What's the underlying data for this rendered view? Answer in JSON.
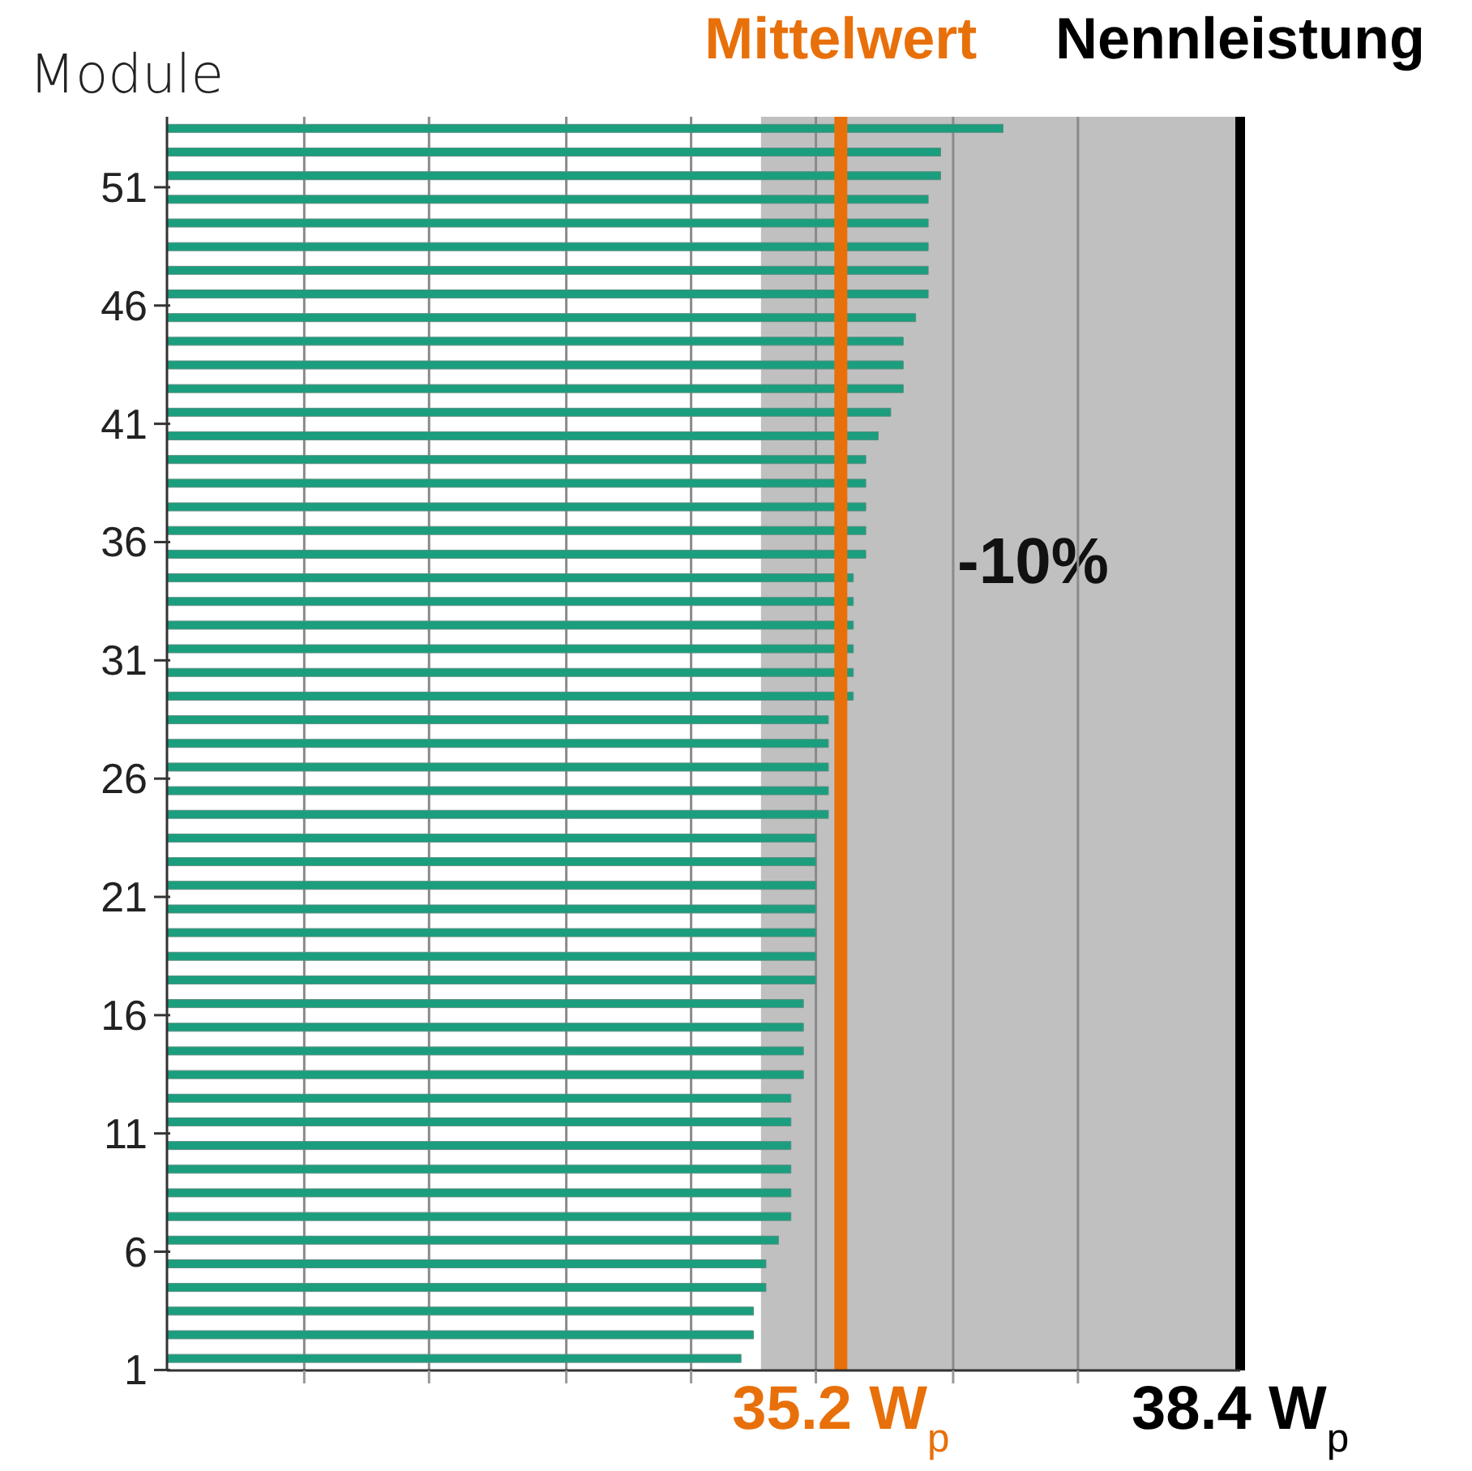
{
  "chart_data": {
    "type": "bar",
    "orientation": "horizontal",
    "ylabel": "Module",
    "categories": [
      null,
      null,
      "51",
      null,
      null,
      null,
      null,
      "46",
      null,
      null,
      null,
      null,
      "41",
      null,
      null,
      null,
      null,
      "36",
      null,
      null,
      null,
      null,
      "31",
      null,
      null,
      null,
      null,
      "26",
      null,
      null,
      null,
      null,
      "21",
      null,
      null,
      null,
      null,
      "16",
      null,
      null,
      null,
      null,
      "11",
      null,
      null,
      null,
      null,
      "6",
      null,
      null,
      null,
      null,
      "1"
    ],
    "values": [
      36.5,
      36.0,
      36.0,
      35.9,
      35.9,
      35.9,
      35.9,
      35.9,
      35.8,
      35.7,
      35.7,
      35.7,
      35.6,
      35.5,
      35.4,
      35.4,
      35.4,
      35.4,
      35.4,
      35.3,
      35.3,
      35.3,
      35.3,
      35.3,
      35.3,
      35.1,
      35.1,
      35.1,
      35.1,
      35.1,
      35.0,
      35.0,
      35.0,
      35.0,
      35.0,
      35.0,
      35.0,
      34.9,
      34.9,
      34.9,
      34.9,
      34.8,
      34.8,
      34.8,
      34.8,
      34.8,
      34.8,
      34.7,
      34.6,
      34.6,
      34.5,
      34.5,
      34.4
    ],
    "color": "#1a9e7e",
    "xlim": [
      29.8,
      38.4
    ],
    "xticks": [
      {
        "value": 30.9,
        "label": null
      },
      {
        "value": 31.9,
        "label": null
      },
      {
        "value": 33.0,
        "label": null
      },
      {
        "value": 34.0,
        "label": null
      },
      {
        "value": 35.0,
        "label": null
      },
      {
        "value": 35.2,
        "label": "35.2 W$_{p}$"
      },
      {
        "value": 36.1,
        "label": null
      },
      {
        "value": 37.1,
        "label": null
      },
      {
        "value": 38.4,
        "label": "38.4 W$_{p}$"
      }
    ],
    "grid": "x",
    "legend": false,
    "ref_lines": [
      {
        "axis": "x",
        "value": 35.2,
        "label": "Mittelwert",
        "color": "#e8700a"
      },
      {
        "axis": "x",
        "value": 38.4,
        "label": "Nennleistung",
        "color": "#000000"
      }
    ],
    "bands": [
      {
        "axis": "x",
        "from": 34.56,
        "to": 38.4,
        "label": "-10%",
        "color": "#c0c0c0"
      }
    ]
  }
}
